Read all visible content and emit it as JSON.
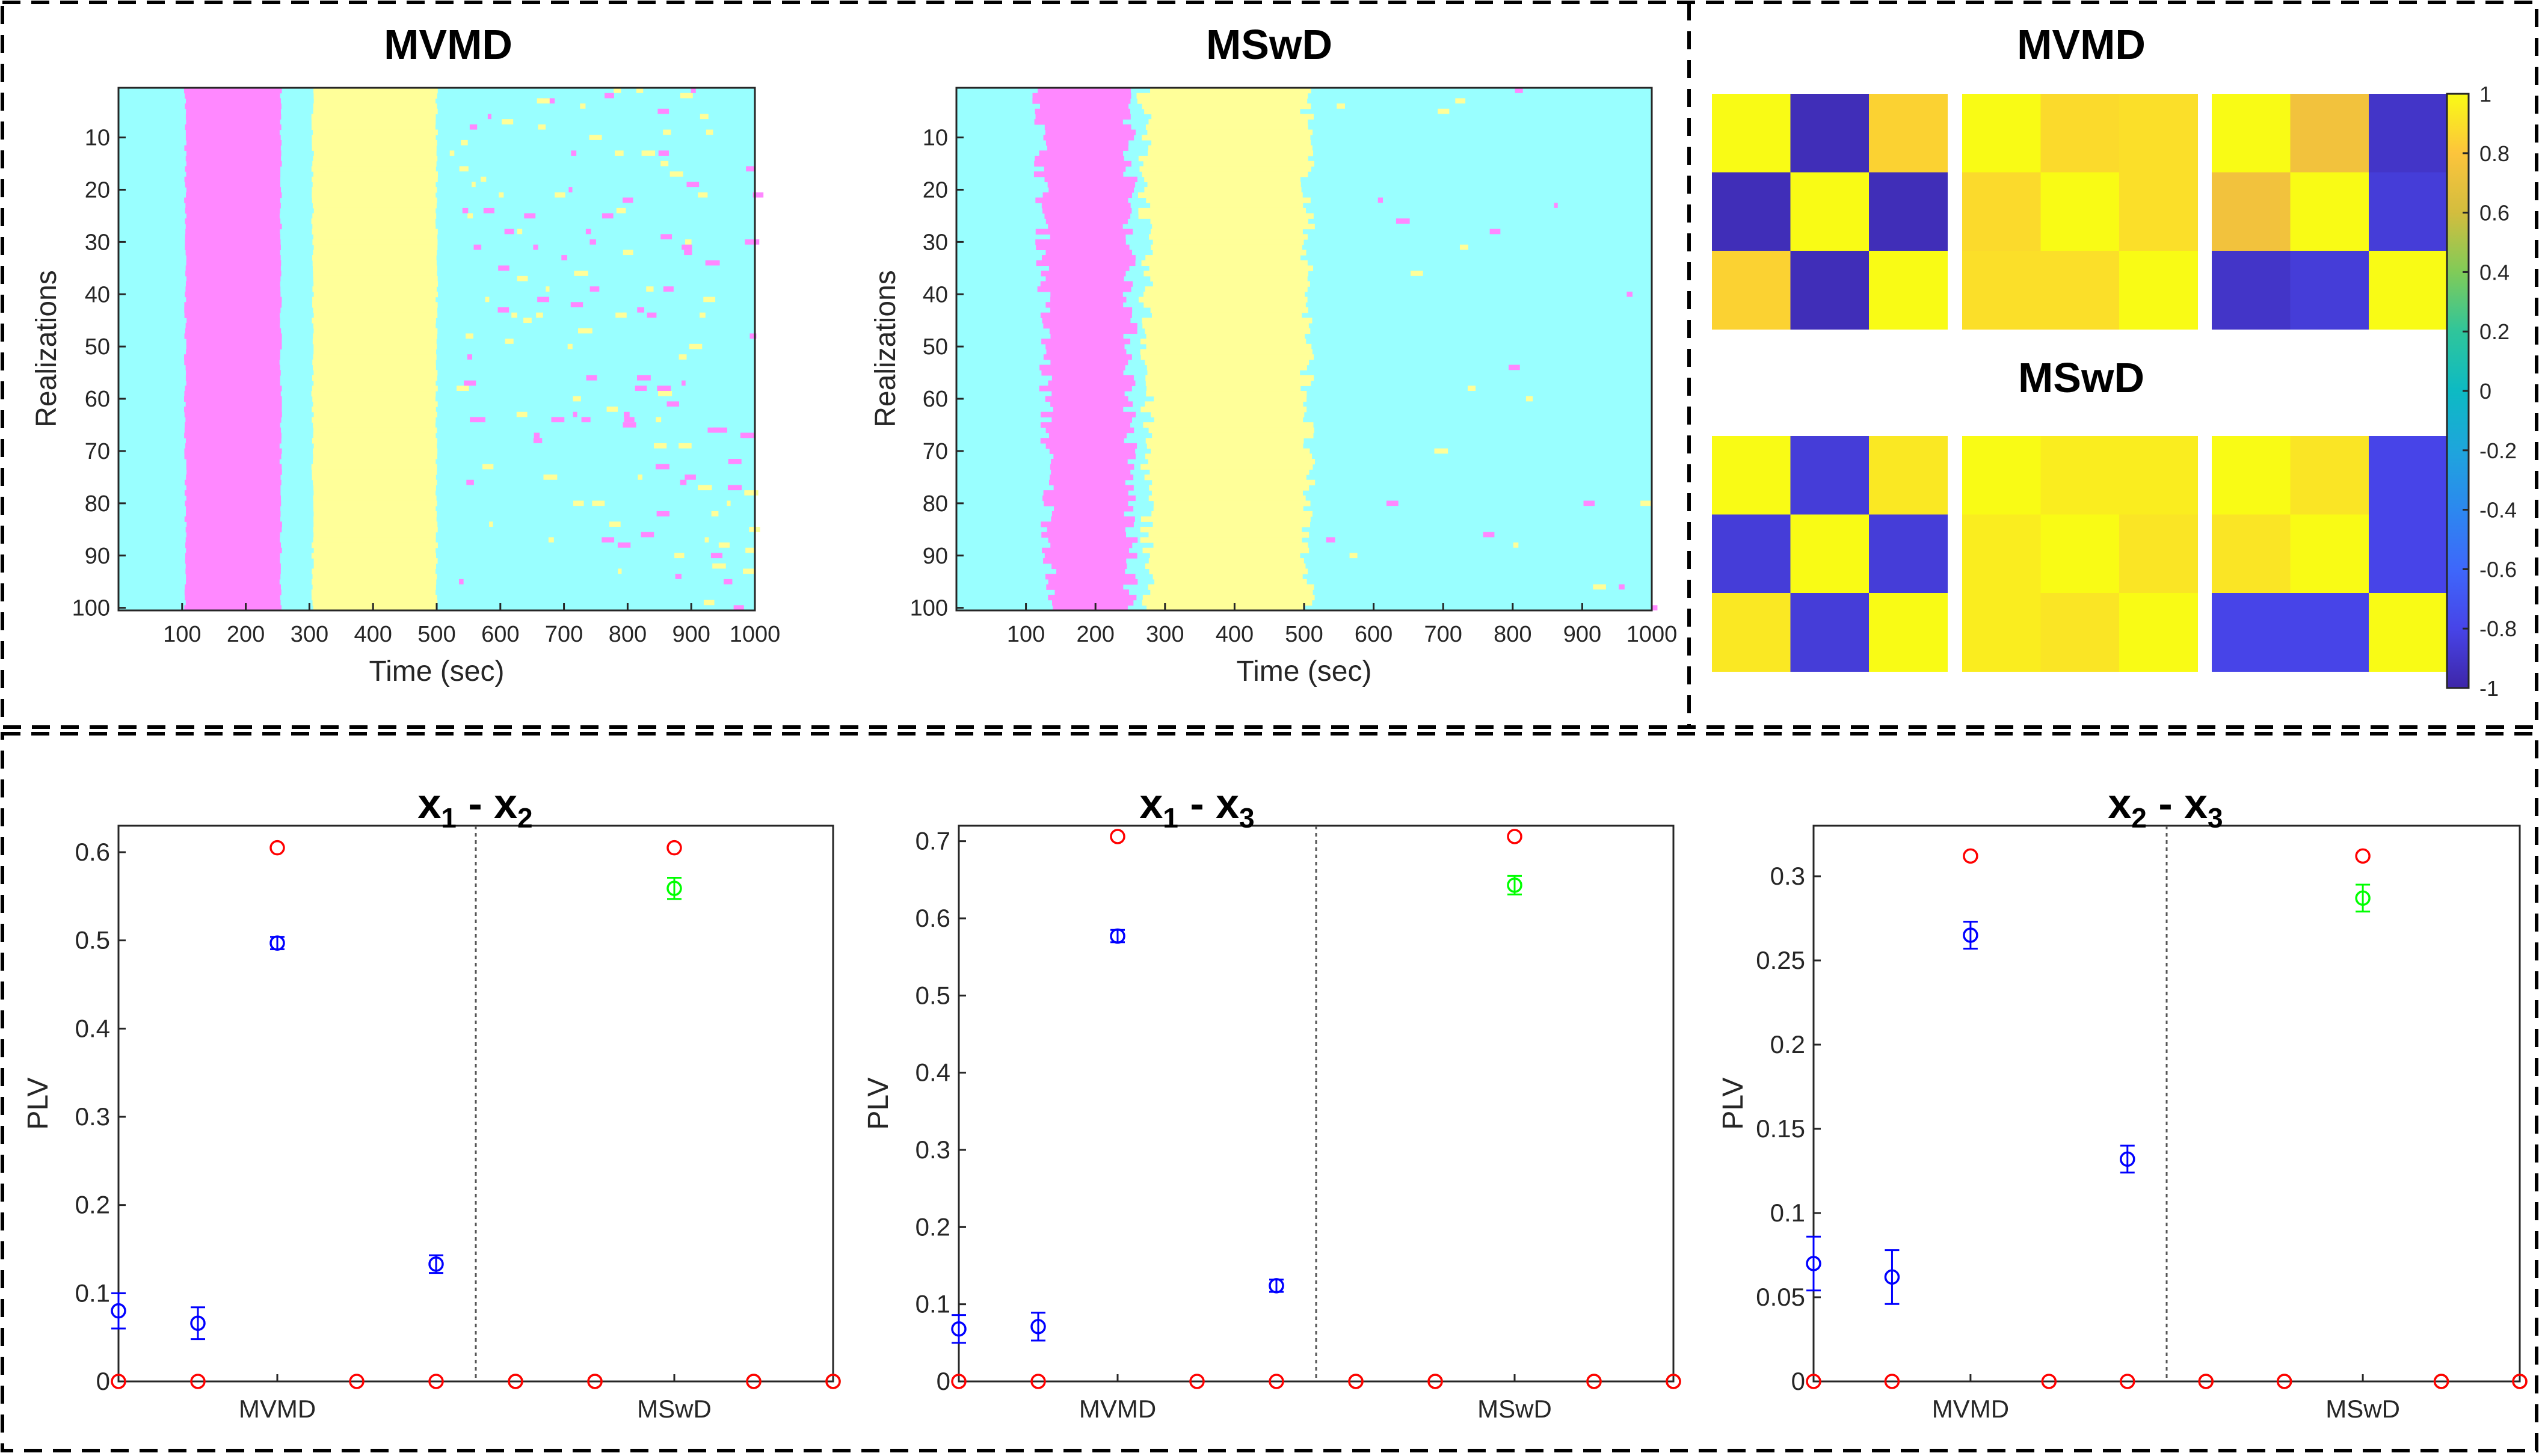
{
  "chart_data": [
    {
      "type": "heatmap",
      "title": "MVMD",
      "xlabel": "Time (sec)",
      "ylabel": "Realizations",
      "xlim": [
        0,
        1000
      ],
      "ylim": [
        1,
        100
      ],
      "x_ticks": [
        100,
        200,
        300,
        400,
        500,
        600,
        700,
        800,
        900,
        1000
      ],
      "y_ticks": [
        10,
        20,
        30,
        40,
        50,
        60,
        70,
        80,
        90,
        100
      ],
      "background_color": "#99ffff",
      "bands": [
        {
          "color": "#ff88ff",
          "start": 105,
          "end": 255
        },
        {
          "color": "#ffff99",
          "start": 305,
          "end": 500
        }
      ]
    },
    {
      "type": "heatmap",
      "title": "MSwD",
      "xlabel": "Time (sec)",
      "ylabel": "Realizations",
      "xlim": [
        0,
        1000
      ],
      "ylim": [
        1,
        100
      ],
      "x_ticks": [
        100,
        200,
        300,
        400,
        500,
        600,
        700,
        800,
        900,
        1000
      ],
      "y_ticks": [
        10,
        20,
        30,
        40,
        50,
        60,
        70,
        80,
        90,
        100
      ],
      "background_color": "#99ffff",
      "bands": [
        {
          "color": "#ff88ff",
          "start": 120,
          "end": 250
        },
        {
          "color": "#ffff99",
          "start": 270,
          "end": 505
        }
      ]
    },
    {
      "type": "heatmap",
      "title": "MVMD",
      "subtitle": "MSwD",
      "colorbar_ticks": [
        "1",
        "0.8",
        "0.6",
        "0.4",
        "0.2",
        "0",
        "-0.2",
        "-0.4",
        "-0.6",
        "-0.8",
        "-1"
      ],
      "clim": [
        -1,
        1
      ],
      "matrices_mvmd": [
        [
          [
            1,
            -0.95,
            0.85
          ],
          [
            -0.95,
            1,
            -0.95
          ],
          [
            0.85,
            -0.95,
            1
          ]
        ],
        [
          [
            1,
            0.88,
            0.9
          ],
          [
            0.88,
            1,
            0.9
          ],
          [
            0.9,
            0.9,
            1
          ]
        ],
        [
          [
            1,
            0.75,
            -0.9
          ],
          [
            0.75,
            1,
            -0.85
          ],
          [
            -0.9,
            -0.85,
            1
          ]
        ]
      ],
      "matrices_mswd": [
        [
          [
            1,
            -0.85,
            0.93
          ],
          [
            -0.85,
            1,
            -0.85
          ],
          [
            0.93,
            -0.85,
            1
          ]
        ],
        [
          [
            1,
            0.95,
            0.95
          ],
          [
            0.95,
            1,
            0.92
          ],
          [
            0.95,
            0.92,
            1
          ]
        ],
        [
          [
            1,
            0.92,
            -0.8
          ],
          [
            0.92,
            1,
            -0.8
          ],
          [
            -0.8,
            -0.8,
            1
          ]
        ]
      ]
    },
    {
      "type": "scatter",
      "title": {
        "a": "x",
        "a_sub": "1",
        "sep": " - ",
        "b": "x",
        "b_sub": "2"
      },
      "ylabel": "PLV",
      "ylim": [
        0,
        0.63
      ],
      "y_ticks": [
        "0",
        "0.1",
        "0.2",
        "0.3",
        "0.4",
        "0.5",
        "0.6"
      ],
      "categories": [
        "MVMD",
        "MSwD"
      ],
      "red": [
        0,
        0,
        0.605,
        0,
        0,
        0,
        0,
        0.605,
        0,
        0
      ],
      "blue": [
        {
          "x": 1,
          "y": 0.08,
          "err": 0.02
        },
        {
          "x": 2,
          "y": 0.066,
          "err": 0.018
        },
        {
          "x": 3,
          "y": 0.497,
          "err": 0.007
        },
        {
          "x": 5,
          "y": 0.133,
          "err": 0.01
        }
      ],
      "green": [
        {
          "x": 8,
          "y": 0.559,
          "err": 0.012
        }
      ],
      "olive": [
        6,
        7,
        9,
        10
      ]
    },
    {
      "type": "scatter",
      "title": {
        "a": "x",
        "a_sub": "1",
        "sep": " - ",
        "b": "x",
        "b_sub": "3"
      },
      "ylabel": "PLV",
      "ylim": [
        0,
        0.72
      ],
      "y_ticks": [
        "0",
        "0.1",
        "0.2",
        "0.3",
        "0.4",
        "0.5",
        "0.6",
        "0.7"
      ],
      "categories": [
        "MVMD",
        "MSwD"
      ],
      "red": [
        0,
        0,
        0.706,
        0,
        0,
        0,
        0,
        0.706,
        0,
        0
      ],
      "blue": [
        {
          "x": 1,
          "y": 0.068,
          "err": 0.018
        },
        {
          "x": 2,
          "y": 0.071,
          "err": 0.018
        },
        {
          "x": 3,
          "y": 0.577,
          "err": 0.008
        },
        {
          "x": 5,
          "y": 0.124,
          "err": 0.008
        }
      ],
      "green": [
        {
          "x": 8,
          "y": 0.643,
          "err": 0.012
        }
      ],
      "olive": [
        6,
        7,
        9,
        10
      ]
    },
    {
      "type": "scatter",
      "title": {
        "a": "x",
        "a_sub": "2",
        "sep": " - ",
        "b": "x",
        "b_sub": "3"
      },
      "ylabel": "PLV",
      "ylim": [
        0,
        0.33
      ],
      "y_ticks": [
        "0",
        "0.05",
        "0.1",
        "0.15",
        "0.2",
        "0.25",
        "0.3"
      ],
      "categories": [
        "MVMD",
        "MSwD"
      ],
      "red": [
        0,
        0,
        0.312,
        0,
        0,
        0,
        0,
        0.312,
        0,
        0
      ],
      "blue": [
        {
          "x": 1,
          "y": 0.07,
          "err": 0.016
        },
        {
          "x": 2,
          "y": 0.062,
          "err": 0.016
        },
        {
          "x": 3,
          "y": 0.265,
          "err": 0.008
        },
        {
          "x": 5,
          "y": 0.132,
          "err": 0.008
        }
      ],
      "green": [
        {
          "x": 8,
          "y": 0.287,
          "err": 0.008
        }
      ],
      "olive": [
        6,
        7,
        9,
        10
      ]
    }
  ]
}
